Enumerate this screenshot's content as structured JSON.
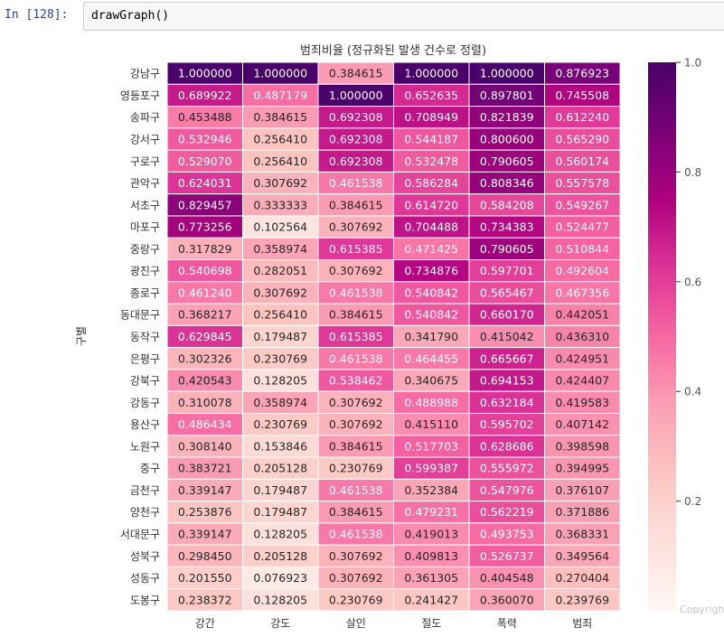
{
  "notebook": {
    "prompt": "In [128]:",
    "code": "drawGraph()",
    "watermark": "Copyright"
  },
  "chart_data": {
    "type": "heatmap",
    "title": "범죄비율 (정규화된 발생 건수로 정렬)",
    "xlabel": "",
    "ylabel": "구별",
    "colormap": "RdPu",
    "colorbar": {
      "range": [
        0.0,
        1.0
      ],
      "ticks": [
        1.0,
        0.8,
        0.6,
        0.4,
        0.2
      ],
      "tick_labels": [
        "1.0",
        "0.8",
        "0.6",
        "0.4",
        "0.2"
      ]
    },
    "columns": [
      "강간",
      "강도",
      "살인",
      "절도",
      "폭력",
      "범죄"
    ],
    "rows": [
      "강남구",
      "영등포구",
      "송파구",
      "강서구",
      "구로구",
      "관악구",
      "서초구",
      "마포구",
      "중랑구",
      "광진구",
      "종로구",
      "동대문구",
      "동작구",
      "은평구",
      "강북구",
      "강동구",
      "용산구",
      "노원구",
      "중구",
      "금천구",
      "양천구",
      "서대문구",
      "성북구",
      "성동구",
      "도봉구"
    ],
    "values": [
      [
        1.0,
        1.0,
        0.384615,
        1.0,
        1.0,
        0.876923
      ],
      [
        0.689922,
        0.487179,
        1.0,
        0.652635,
        0.897801,
        0.745508
      ],
      [
        0.453488,
        0.384615,
        0.692308,
        0.708949,
        0.821839,
        0.61224
      ],
      [
        0.532946,
        0.25641,
        0.692308,
        0.544187,
        0.8006,
        0.56529
      ],
      [
        0.52907,
        0.25641,
        0.692308,
        0.532478,
        0.790605,
        0.560174
      ],
      [
        0.624031,
        0.307692,
        0.461538,
        0.586284,
        0.808346,
        0.557578
      ],
      [
        0.829457,
        0.333333,
        0.384615,
        0.61472,
        0.584208,
        0.549267
      ],
      [
        0.773256,
        0.102564,
        0.307692,
        0.704488,
        0.734383,
        0.524477
      ],
      [
        0.317829,
        0.358974,
        0.615385,
        0.471425,
        0.790605,
        0.510844
      ],
      [
        0.540698,
        0.282051,
        0.307692,
        0.734876,
        0.597701,
        0.492604
      ],
      [
        0.46124,
        0.307692,
        0.461538,
        0.540842,
        0.565467,
        0.467356
      ],
      [
        0.368217,
        0.25641,
        0.384615,
        0.540842,
        0.66017,
        0.442051
      ],
      [
        0.629845,
        0.179487,
        0.615385,
        0.34179,
        0.415042,
        0.43631
      ],
      [
        0.302326,
        0.230769,
        0.461538,
        0.464455,
        0.665667,
        0.424951
      ],
      [
        0.420543,
        0.128205,
        0.538462,
        0.340675,
        0.694153,
        0.424407
      ],
      [
        0.310078,
        0.358974,
        0.307692,
        0.488988,
        0.632184,
        0.419583
      ],
      [
        0.486434,
        0.230769,
        0.307692,
        0.41511,
        0.595702,
        0.407142
      ],
      [
        0.30814,
        0.153846,
        0.384615,
        0.517703,
        0.628686,
        0.398598
      ],
      [
        0.383721,
        0.205128,
        0.230769,
        0.599387,
        0.555972,
        0.394995
      ],
      [
        0.339147,
        0.179487,
        0.461538,
        0.352384,
        0.547976,
        0.376107
      ],
      [
        0.253876,
        0.179487,
        0.384615,
        0.479231,
        0.562219,
        0.371886
      ],
      [
        0.339147,
        0.128205,
        0.461538,
        0.419013,
        0.493753,
        0.368331
      ],
      [
        0.29845,
        0.205128,
        0.307692,
        0.409813,
        0.526737,
        0.349564
      ],
      [
        0.20155,
        0.076923,
        0.307692,
        0.361305,
        0.404548,
        0.270404
      ],
      [
        0.238372,
        0.128205,
        0.230769,
        0.241427,
        0.36007,
        0.239769
      ]
    ],
    "annotation_format": "%.6f",
    "grid": false,
    "legend": "colorbar-right"
  }
}
